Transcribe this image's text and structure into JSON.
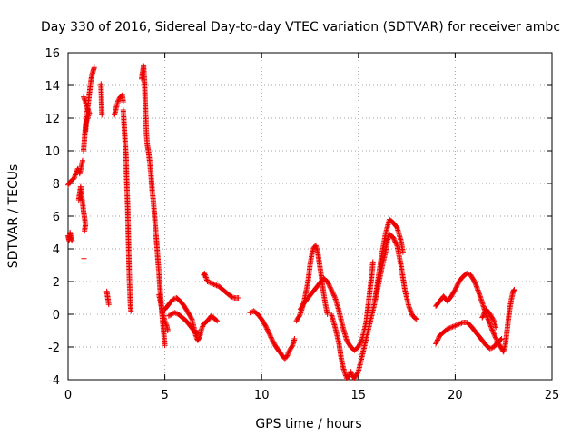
{
  "chart_data": {
    "type": "scatter",
    "title": "Day 330 of 2016, Sidereal Day-to-day VTEC variation (SDTVAR) for receiver ambc",
    "xlabel": "GPS time / hours",
    "ylabel": "SDTVAR / TECUs",
    "xlim": [
      0,
      25
    ],
    "ylim": [
      -4,
      16
    ],
    "xticks": [
      0,
      5,
      10,
      15,
      20,
      25
    ],
    "yticks": [
      -4,
      -2,
      0,
      2,
      4,
      6,
      8,
      10,
      12,
      14,
      16
    ],
    "grid": true,
    "marker": "+",
    "color": "#ee0000",
    "series": [
      {
        "name": "sdtvar",
        "segments": [
          [
            [
              0.0,
              4.8
            ],
            [
              0.05,
              4.5
            ],
            [
              0.1,
              5.0
            ],
            [
              0.15,
              4.7
            ],
            [
              0.2,
              4.5
            ]
          ],
          [
            [
              0.0,
              7.9
            ],
            [
              0.1,
              8.1
            ],
            [
              0.2,
              8.2
            ],
            [
              0.3,
              8.3
            ],
            [
              0.4,
              8.6
            ],
            [
              0.5,
              8.9
            ],
            [
              0.6,
              8.6
            ],
            [
              0.7,
              9.1
            ],
            [
              0.75,
              9.4
            ]
          ],
          [
            [
              0.55,
              7.0
            ],
            [
              0.6,
              7.4
            ],
            [
              0.65,
              7.8
            ],
            [
              0.7,
              7.2
            ],
            [
              0.75,
              6.8
            ],
            [
              0.8,
              6.3
            ],
            [
              0.85,
              5.9
            ],
            [
              0.9,
              5.5
            ],
            [
              0.85,
              5.1
            ]
          ],
          [
            [
              0.82,
              3.4
            ]
          ],
          [
            [
              0.8,
              10.0
            ],
            [
              0.85,
              10.8
            ],
            [
              0.9,
              11.5
            ],
            [
              0.95,
              12.0
            ],
            [
              1.0,
              12.5
            ],
            [
              1.05,
              13.0
            ],
            [
              1.1,
              13.5
            ],
            [
              1.15,
              14.0
            ],
            [
              1.2,
              14.4
            ],
            [
              1.25,
              14.7
            ],
            [
              1.3,
              14.9
            ],
            [
              1.35,
              15.1
            ]
          ],
          [
            [
              0.8,
              13.3
            ],
            [
              0.9,
              13.0
            ],
            [
              1.0,
              12.6
            ],
            [
              1.1,
              12.3
            ],
            [
              0.95,
              11.8
            ],
            [
              0.9,
              11.2
            ]
          ],
          [
            [
              1.7,
              14.1
            ],
            [
              1.75,
              12.2
            ]
          ],
          [
            [
              2.0,
              1.4
            ],
            [
              2.05,
              1.0
            ],
            [
              2.1,
              0.6
            ]
          ],
          [
            [
              2.4,
              12.2
            ],
            [
              2.5,
              12.7
            ],
            [
              2.6,
              13.1
            ],
            [
              2.7,
              13.3
            ],
            [
              2.8,
              13.4
            ],
            [
              2.85,
              13.0
            ]
          ],
          [
            [
              2.85,
              12.5
            ],
            [
              2.9,
              11.5
            ],
            [
              2.95,
              10.5
            ],
            [
              3.0,
              9.5
            ],
            [
              3.02,
              8.5
            ],
            [
              3.05,
              7.5
            ],
            [
              3.08,
              6.5
            ],
            [
              3.1,
              5.5
            ],
            [
              3.12,
              4.5
            ],
            [
              3.14,
              3.5
            ],
            [
              3.16,
              2.5
            ],
            [
              3.18,
              1.8
            ],
            [
              3.2,
              1.2
            ],
            [
              3.22,
              0.6
            ],
            [
              3.25,
              0.2
            ]
          ],
          [
            [
              3.8,
              14.4
            ],
            [
              3.85,
              14.8
            ],
            [
              3.9,
              15.2
            ],
            [
              3.95,
              14.2
            ],
            [
              4.0,
              12.5
            ],
            [
              4.05,
              11.0
            ],
            [
              4.1,
              10.3
            ],
            [
              4.15,
              10.0
            ],
            [
              4.2,
              9.5
            ],
            [
              4.25,
              9.0
            ],
            [
              4.3,
              8.3
            ],
            [
              4.35,
              7.5
            ],
            [
              4.4,
              7.0
            ],
            [
              4.45,
              6.3
            ],
            [
              4.5,
              5.5
            ],
            [
              4.55,
              4.8
            ],
            [
              4.6,
              4.0
            ],
            [
              4.65,
              3.2
            ],
            [
              4.7,
              2.5
            ],
            [
              4.75,
              1.6
            ],
            [
              4.8,
              0.8
            ],
            [
              4.85,
              0.1
            ],
            [
              4.9,
              -0.6
            ],
            [
              4.95,
              -1.2
            ],
            [
              5.0,
              -1.9
            ]
          ],
          [
            [
              4.7,
              1.2
            ],
            [
              4.8,
              0.6
            ],
            [
              4.9,
              0.0
            ],
            [
              5.0,
              -0.4
            ],
            [
              5.1,
              -0.7
            ],
            [
              5.15,
              -1.0
            ]
          ],
          [
            [
              5.0,
              0.3
            ],
            [
              5.2,
              0.6
            ],
            [
              5.4,
              0.9
            ],
            [
              5.6,
              1.0
            ],
            [
              5.8,
              0.8
            ],
            [
              6.0,
              0.5
            ],
            [
              6.2,
              0.1
            ],
            [
              6.4,
              -0.3
            ],
            [
              6.5,
              -0.8
            ],
            [
              6.6,
              -1.3
            ],
            [
              6.7,
              -1.6
            ],
            [
              6.8,
              -1.4
            ],
            [
              6.9,
              -0.9
            ],
            [
              7.0,
              -0.6
            ]
          ],
          [
            [
              5.2,
              -0.1
            ],
            [
              5.5,
              0.1
            ],
            [
              5.7,
              0.0
            ],
            [
              5.9,
              -0.2
            ],
            [
              6.1,
              -0.4
            ],
            [
              6.3,
              -0.7
            ],
            [
              6.5,
              -1.0
            ],
            [
              6.6,
              -1.2
            ],
            [
              6.75,
              -1.1
            ]
          ],
          [
            [
              7.0,
              2.4
            ],
            [
              7.05,
              2.5
            ],
            [
              7.2,
              2.0
            ],
            [
              7.4,
              1.9
            ],
            [
              7.6,
              1.8
            ],
            [
              7.8,
              1.7
            ],
            [
              8.0,
              1.5
            ],
            [
              8.2,
              1.3
            ],
            [
              8.4,
              1.1
            ],
            [
              8.6,
              1.0
            ],
            [
              8.8,
              1.0
            ]
          ],
          [
            [
              7.0,
              -0.6
            ],
            [
              7.2,
              -0.4
            ],
            [
              7.4,
              -0.1
            ],
            [
              7.5,
              -0.2
            ],
            [
              7.7,
              -0.4
            ]
          ],
          [
            [
              9.4,
              0.1
            ],
            [
              9.6,
              0.2
            ],
            [
              9.8,
              0.0
            ],
            [
              10.0,
              -0.3
            ],
            [
              10.2,
              -0.7
            ],
            [
              10.4,
              -1.2
            ],
            [
              10.6,
              -1.7
            ],
            [
              10.8,
              -2.1
            ],
            [
              11.0,
              -2.4
            ],
            [
              11.1,
              -2.6
            ],
            [
              11.2,
              -2.7
            ],
            [
              11.3,
              -2.6
            ],
            [
              11.4,
              -2.3
            ],
            [
              11.5,
              -2.1
            ],
            [
              11.6,
              -1.9
            ],
            [
              11.7,
              -1.5
            ]
          ],
          [
            [
              11.8,
              -0.4
            ],
            [
              12.0,
              0.0
            ],
            [
              12.2,
              0.8
            ],
            [
              12.4,
              2.0
            ],
            [
              12.5,
              3.0
            ],
            [
              12.6,
              3.7
            ],
            [
              12.7,
              4.1
            ],
            [
              12.8,
              4.2
            ],
            [
              12.9,
              3.8
            ],
            [
              13.0,
              3.0
            ],
            [
              13.1,
              2.2
            ],
            [
              13.2,
              1.3
            ],
            [
              13.3,
              0.6
            ],
            [
              13.4,
              0.0
            ]
          ],
          [
            [
              12.0,
              0.3
            ],
            [
              12.2,
              0.7
            ],
            [
              12.4,
              1.0
            ],
            [
              12.6,
              1.3
            ],
            [
              12.8,
              1.6
            ],
            [
              13.0,
              1.9
            ],
            [
              13.2,
              2.2
            ],
            [
              13.4,
              2.0
            ],
            [
              13.6,
              1.5
            ],
            [
              13.8,
              1.0
            ],
            [
              14.0,
              0.2
            ],
            [
              14.2,
              -0.8
            ],
            [
              14.4,
              -1.6
            ],
            [
              14.6,
              -2.0
            ],
            [
              14.8,
              -2.2
            ],
            [
              15.0,
              -2.0
            ],
            [
              15.2,
              -1.5
            ],
            [
              15.4,
              -0.5
            ],
            [
              15.5,
              0.5
            ],
            [
              15.6,
              1.5
            ],
            [
              15.7,
              2.5
            ],
            [
              15.75,
              3.2
            ]
          ],
          [
            [
              13.6,
              0.0
            ],
            [
              13.8,
              -0.8
            ],
            [
              14.0,
              -1.8
            ],
            [
              14.1,
              -2.6
            ],
            [
              14.2,
              -3.2
            ],
            [
              14.3,
              -3.6
            ],
            [
              14.4,
              -3.9
            ],
            [
              14.5,
              -3.8
            ],
            [
              14.6,
              -3.5
            ],
            [
              14.7,
              -3.8
            ],
            [
              14.8,
              -3.9
            ],
            [
              15.0,
              -3.5
            ],
            [
              15.2,
              -2.5
            ],
            [
              15.4,
              -1.5
            ],
            [
              15.6,
              -0.5
            ],
            [
              15.8,
              0.5
            ],
            [
              16.0,
              1.6
            ],
            [
              16.2,
              2.8
            ],
            [
              16.4,
              3.8
            ],
            [
              16.5,
              4.5
            ],
            [
              16.6,
              4.9
            ],
            [
              16.8,
              4.7
            ],
            [
              17.0,
              4.2
            ],
            [
              17.2,
              3.0
            ],
            [
              17.4,
              1.5
            ],
            [
              17.6,
              0.5
            ],
            [
              17.8,
              -0.1
            ],
            [
              18.0,
              -0.3
            ]
          ],
          [
            [
              15.8,
              0.5
            ],
            [
              16.0,
              2.0
            ],
            [
              16.2,
              3.6
            ],
            [
              16.4,
              4.9
            ],
            [
              16.6,
              5.8
            ],
            [
              16.8,
              5.6
            ],
            [
              17.0,
              5.3
            ],
            [
              17.2,
              4.5
            ],
            [
              17.3,
              3.8
            ]
          ],
          [
            [
              19.0,
              0.5
            ],
            [
              19.2,
              0.8
            ],
            [
              19.4,
              1.1
            ],
            [
              19.6,
              0.8
            ],
            [
              19.8,
              1.1
            ],
            [
              20.0,
              1.5
            ],
            [
              20.2,
              2.0
            ],
            [
              20.4,
              2.3
            ],
            [
              20.6,
              2.5
            ],
            [
              20.8,
              2.4
            ],
            [
              21.0,
              2.0
            ],
            [
              21.2,
              1.4
            ],
            [
              21.4,
              0.7
            ],
            [
              21.6,
              0.0
            ],
            [
              21.8,
              -0.6
            ],
            [
              22.0,
              -1.2
            ],
            [
              22.2,
              -1.7
            ],
            [
              22.4,
              -2.1
            ],
            [
              22.5,
              -2.3
            ],
            [
              22.6,
              -1.8
            ],
            [
              22.7,
              -0.8
            ],
            [
              22.8,
              0.2
            ],
            [
              22.9,
              0.9
            ],
            [
              23.0,
              1.4
            ],
            [
              23.05,
              1.5
            ]
          ],
          [
            [
              19.0,
              -1.8
            ],
            [
              19.2,
              -1.3
            ],
            [
              19.4,
              -1.1
            ],
            [
              19.6,
              -0.9
            ],
            [
              19.8,
              -0.8
            ],
            [
              20.0,
              -0.7
            ],
            [
              20.2,
              -0.6
            ],
            [
              20.4,
              -0.5
            ],
            [
              20.6,
              -0.5
            ],
            [
              20.8,
              -0.7
            ],
            [
              21.0,
              -1.0
            ],
            [
              21.2,
              -1.3
            ],
            [
              21.4,
              -1.6
            ],
            [
              21.6,
              -1.9
            ],
            [
              21.8,
              -2.1
            ],
            [
              22.0,
              -2.0
            ],
            [
              22.2,
              -1.7
            ],
            [
              22.4,
              -1.5
            ]
          ],
          [
            [
              21.4,
              -0.2
            ],
            [
              21.6,
              0.3
            ],
            [
              21.8,
              0.0
            ],
            [
              22.0,
              -0.4
            ],
            [
              22.1,
              -0.8
            ]
          ]
        ]
      }
    ]
  }
}
